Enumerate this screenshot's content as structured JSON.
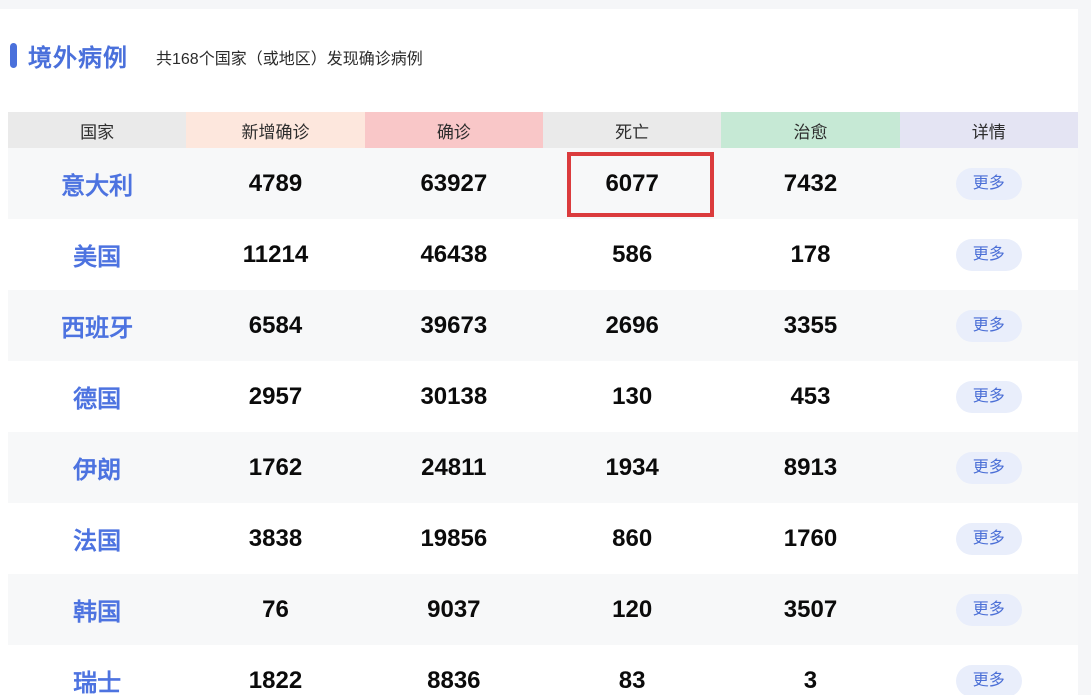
{
  "section": {
    "title": "境外病例",
    "subtitle": "共168个国家（或地区）发现确诊病例"
  },
  "colors": {
    "accent_blue": "#4a70db",
    "country_link_blue": "#4d73e0",
    "more_button_bg": "#e9eefb",
    "more_button_text": "#4b6fd6",
    "header_gray": "#eaeaea",
    "header_new_confirmed": "#fde7dd",
    "header_confirmed": "#f9c7c8",
    "header_cured": "#c6e9d5",
    "header_detail": "#e4e4f3",
    "row_stripe": "#f7f8f9",
    "annotation_red": "#db3b3d"
  },
  "table": {
    "columns": [
      {
        "key": "country",
        "label": "国家",
        "bg": "#eaeaea"
      },
      {
        "key": "new_confirmed",
        "label": "新增确诊",
        "bg": "#fde7dd"
      },
      {
        "key": "confirmed",
        "label": "确诊",
        "bg": "#f9c7c8"
      },
      {
        "key": "deaths",
        "label": "死亡",
        "bg": "#eaeaea"
      },
      {
        "key": "cured",
        "label": "治愈",
        "bg": "#c6e9d5"
      },
      {
        "key": "detail",
        "label": "详情",
        "bg": "#e4e4f3"
      }
    ],
    "more_label": "更多",
    "rows": [
      {
        "country": "意大利",
        "new_confirmed": "4789",
        "confirmed": "63927",
        "deaths": "6077",
        "cured": "7432"
      },
      {
        "country": "美国",
        "new_confirmed": "11214",
        "confirmed": "46438",
        "deaths": "586",
        "cured": "178"
      },
      {
        "country": "西班牙",
        "new_confirmed": "6584",
        "confirmed": "39673",
        "deaths": "2696",
        "cured": "3355"
      },
      {
        "country": "德国",
        "new_confirmed": "2957",
        "confirmed": "30138",
        "deaths": "130",
        "cured": "453"
      },
      {
        "country": "伊朗",
        "new_confirmed": "1762",
        "confirmed": "24811",
        "deaths": "1934",
        "cured": "8913"
      },
      {
        "country": "法国",
        "new_confirmed": "3838",
        "confirmed": "19856",
        "deaths": "860",
        "cured": "1760"
      },
      {
        "country": "韩国",
        "new_confirmed": "76",
        "confirmed": "9037",
        "deaths": "120",
        "cured": "3507"
      },
      {
        "country": "瑞士",
        "new_confirmed": "1822",
        "confirmed": "8836",
        "deaths": "83",
        "cured": "3"
      }
    ],
    "annotation": {
      "row_index": 0,
      "column": "deaths",
      "highlighted_value": "6077",
      "color": "#db3b3d"
    }
  }
}
